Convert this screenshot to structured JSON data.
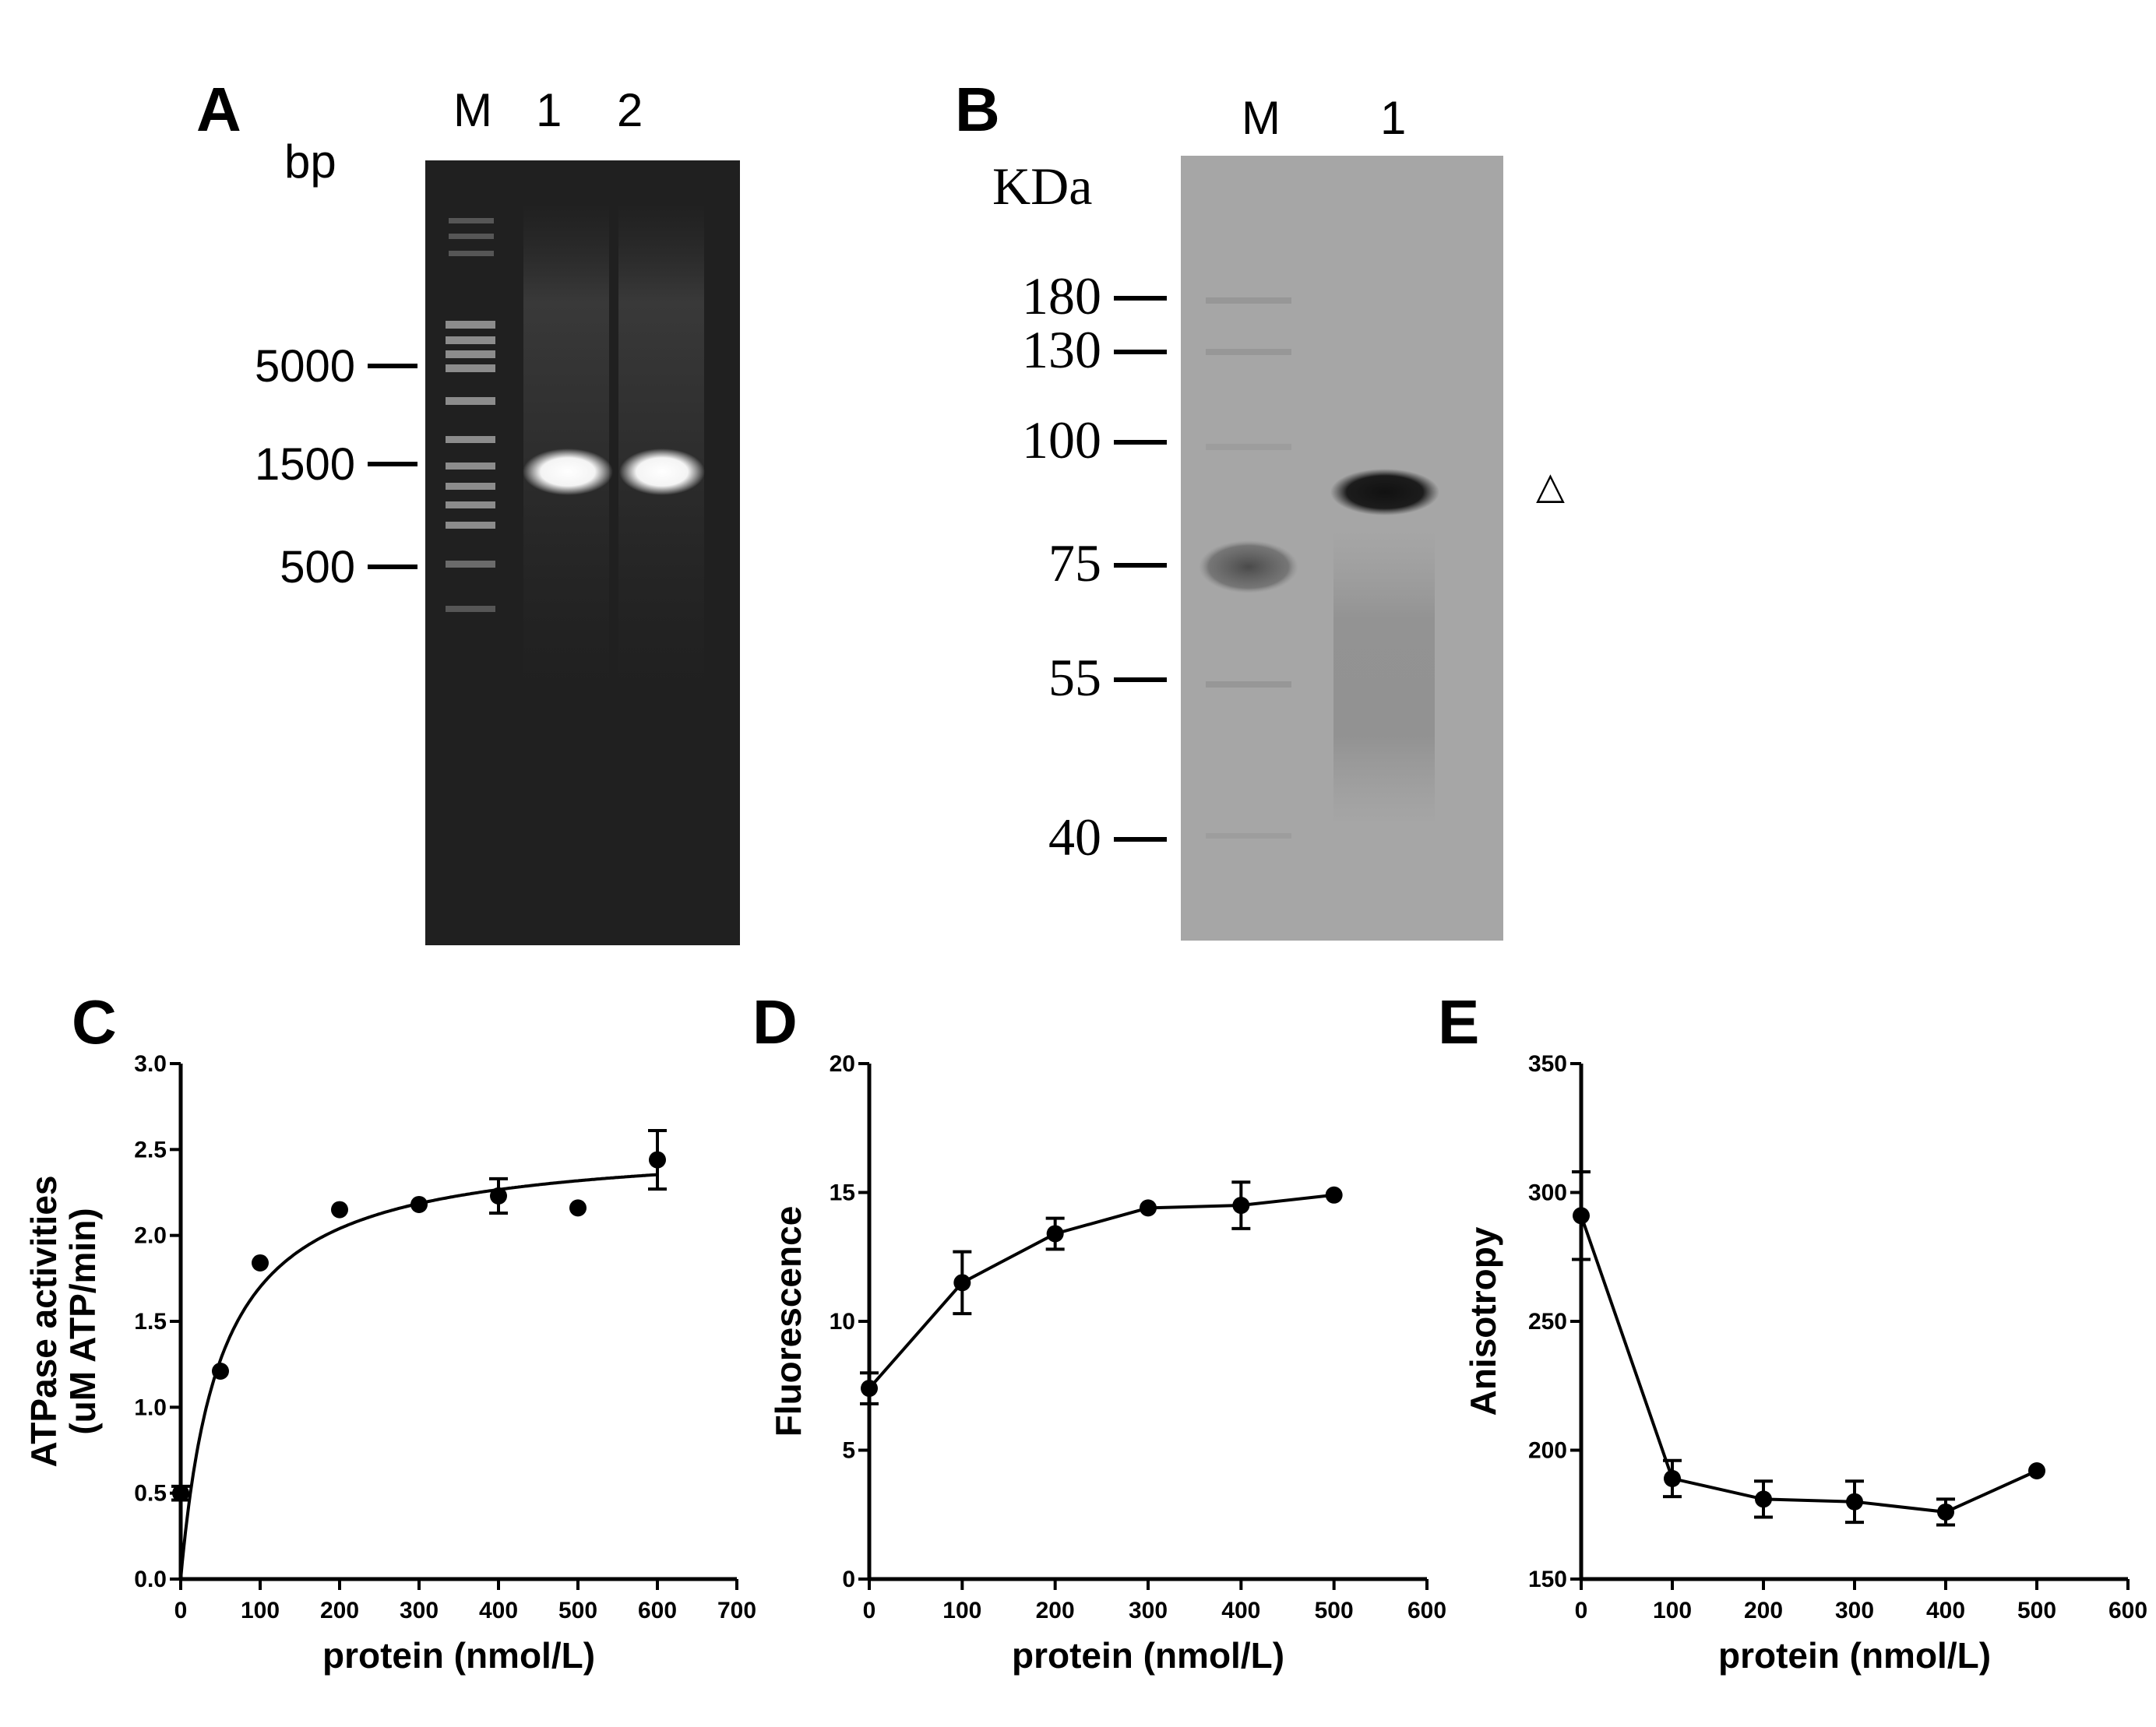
{
  "gels": {
    "A": {
      "letter": "A",
      "unit": "bp",
      "lanes": [
        "M",
        "1",
        "2"
      ],
      "markers": [
        "5000",
        "1500",
        "500"
      ]
    },
    "B": {
      "letter": "B",
      "unit": "KDa",
      "lanes": [
        "M",
        "1"
      ],
      "markers": [
        "180",
        "130",
        "100",
        "75",
        "55",
        "40"
      ],
      "band_marker": "△"
    }
  },
  "chart_data": [
    {
      "id": "C",
      "type": "scatter",
      "panel_label": "C",
      "xlabel": "protein (nmol/L)",
      "ylabel_lines": [
        "ATPase activities",
        "(uM ATP/min)"
      ],
      "xlim": [
        0,
        700
      ],
      "ylim": [
        0,
        3
      ],
      "xticks": [
        0,
        100,
        200,
        300,
        400,
        500,
        600,
        700
      ],
      "yticks": [
        0,
        0.5,
        1,
        1.5,
        2,
        2.5,
        3
      ],
      "yticks_text": [
        "0.0",
        "0.5",
        "1.0",
        "1.5",
        "2.0",
        "2.5",
        "3.0"
      ],
      "points": [
        {
          "x": 0,
          "y": 0.5,
          "err": 0.04
        },
        {
          "x": 50,
          "y": 1.21,
          "err": 0
        },
        {
          "x": 100,
          "y": 1.84,
          "err": 0
        },
        {
          "x": 200,
          "y": 2.15,
          "err": 0
        },
        {
          "x": 300,
          "y": 2.18,
          "err": 0
        },
        {
          "x": 400,
          "y": 2.23,
          "err": 0.1
        },
        {
          "x": 500,
          "y": 2.16,
          "err": 0
        },
        {
          "x": 600,
          "y": 2.44,
          "err": 0.17
        }
      ],
      "fit": {
        "model": "hyperbolic",
        "vmax": 2.55,
        "k": 50
      }
    },
    {
      "id": "D",
      "type": "line",
      "panel_label": "D",
      "xlabel": "protein (nmol/L)",
      "ylabel_lines": [
        "Fluorescence"
      ],
      "xlim": [
        0,
        600
      ],
      "ylim": [
        0,
        20
      ],
      "xticks": [
        0,
        100,
        200,
        300,
        400,
        500,
        600
      ],
      "yticks": [
        0,
        5,
        10,
        15,
        20
      ],
      "yticks_text": [
        "0",
        "5",
        "10",
        "15",
        "20"
      ],
      "points": [
        {
          "x": 0,
          "y": 7.4,
          "err": 0.6
        },
        {
          "x": 100,
          "y": 11.5,
          "err": 1.2
        },
        {
          "x": 200,
          "y": 13.4,
          "err": 0.6
        },
        {
          "x": 300,
          "y": 14.4,
          "err": 0
        },
        {
          "x": 400,
          "y": 14.5,
          "err": 0.9
        },
        {
          "x": 500,
          "y": 14.9,
          "err": 0
        }
      ]
    },
    {
      "id": "E",
      "type": "line",
      "panel_label": "E",
      "xlabel": "protein (nmol/L)",
      "ylabel_lines": [
        "Anisotropy"
      ],
      "xlim": [
        0,
        600
      ],
      "ylim": [
        150,
        350
      ],
      "xticks": [
        0,
        100,
        200,
        300,
        400,
        500,
        600
      ],
      "yticks": [
        150,
        200,
        250,
        300,
        350
      ],
      "yticks_text": [
        "150",
        "200",
        "250",
        "300",
        "350"
      ],
      "points": [
        {
          "x": 0,
          "y": 291,
          "err": 17
        },
        {
          "x": 100,
          "y": 189,
          "err": 7
        },
        {
          "x": 200,
          "y": 181,
          "err": 7
        },
        {
          "x": 300,
          "y": 180,
          "err": 8
        },
        {
          "x": 400,
          "y": 176,
          "err": 5
        },
        {
          "x": 500,
          "y": 192,
          "err": 0
        }
      ]
    }
  ]
}
